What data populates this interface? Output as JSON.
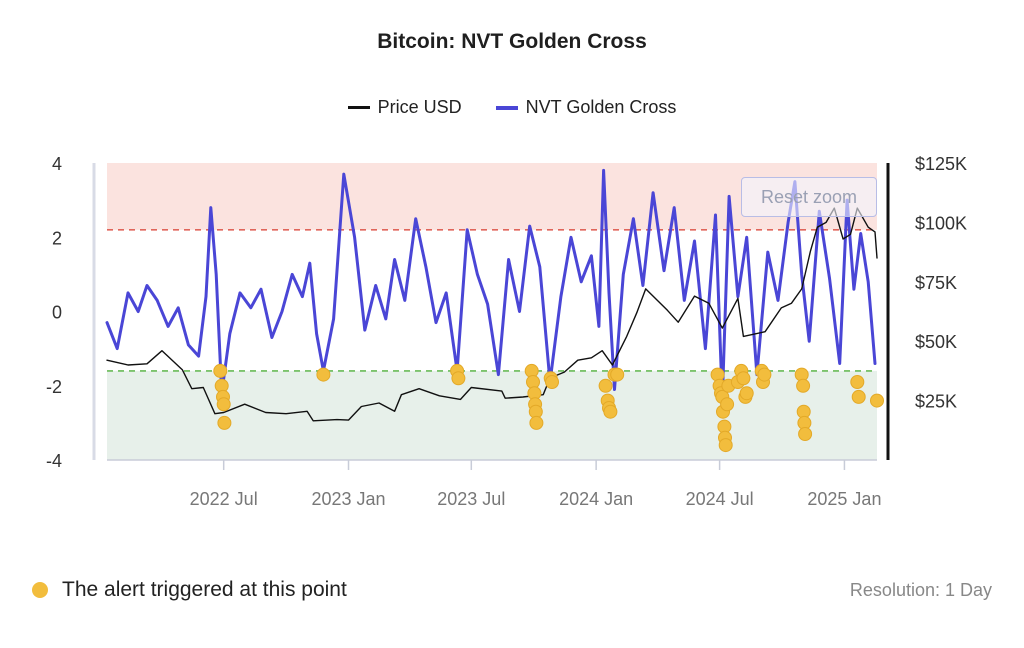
{
  "title": "Bitcoin: NVT Golden Cross",
  "legend": {
    "price_label": "Price USD",
    "nvt_label": "NVT Golden Cross"
  },
  "reset_zoom_label": "Reset zoom",
  "footer": {
    "alert_note": "The alert triggered at this point",
    "resolution": "Resolution: 1 Day"
  },
  "colors": {
    "nvt": "#4a46d6",
    "price": "#111111",
    "alert": "#f2bd3d",
    "upper_band": "#fbe3df",
    "lower_band": "#e7f0ea",
    "upper_threshold": "#e0655a",
    "lower_threshold": "#69bb58"
  },
  "chart_data": {
    "type": "line",
    "title": "Bitcoin: NVT Golden Cross",
    "x_ticks": [
      "2022 Jul",
      "2023 Jan",
      "2023 Jul",
      "2024 Jan",
      "2024 Jul",
      "2025 Jan"
    ],
    "x_tick_dates": [
      "2022-07-01",
      "2023-01-01",
      "2023-07-01",
      "2024-01-01",
      "2024-07-01",
      "2025-01-01"
    ],
    "x_range": [
      "2022-01-10",
      "2025-02-18"
    ],
    "y_left": {
      "ticks": [
        "4",
        "2",
        "0",
        "-2",
        "-4"
      ],
      "range": [
        -4,
        4
      ]
    },
    "y_right": {
      "ticks": [
        "$125K",
        "$100K",
        "$75K",
        "$50K",
        "$25K"
      ],
      "range": [
        0,
        125000
      ]
    },
    "thresholds": {
      "upper": 2.2,
      "lower": -1.6
    },
    "bands": {
      "upper": [
        2.2,
        4
      ],
      "lower": [
        -4,
        -1.6
      ]
    },
    "series": [
      {
        "name": "NVT Golden Cross",
        "axis": "left",
        "points": [
          [
            "2022-01-10",
            -0.3
          ],
          [
            "2022-01-25",
            -1.0
          ],
          [
            "2022-02-10",
            0.5
          ],
          [
            "2022-02-25",
            0.0
          ],
          [
            "2022-03-10",
            0.7
          ],
          [
            "2022-03-25",
            0.3
          ],
          [
            "2022-04-10",
            -0.4
          ],
          [
            "2022-04-25",
            0.1
          ],
          [
            "2022-05-10",
            -0.9
          ],
          [
            "2022-05-25",
            -1.2
          ],
          [
            "2022-06-05",
            0.4
          ],
          [
            "2022-06-12",
            2.8
          ],
          [
            "2022-06-20",
            1.0
          ],
          [
            "2022-06-28",
            -2.2
          ],
          [
            "2022-07-10",
            -0.6
          ],
          [
            "2022-07-25",
            0.5
          ],
          [
            "2022-08-10",
            0.1
          ],
          [
            "2022-08-25",
            0.6
          ],
          [
            "2022-09-10",
            -0.7
          ],
          [
            "2022-09-25",
            0.0
          ],
          [
            "2022-10-10",
            1.0
          ],
          [
            "2022-10-25",
            0.4
          ],
          [
            "2022-11-05",
            1.3
          ],
          [
            "2022-11-15",
            -0.6
          ],
          [
            "2022-11-25",
            -1.6
          ],
          [
            "2022-12-10",
            -0.2
          ],
          [
            "2022-12-25",
            3.7
          ],
          [
            "2023-01-10",
            2.0
          ],
          [
            "2023-01-25",
            -0.5
          ],
          [
            "2023-02-10",
            0.7
          ],
          [
            "2023-02-25",
            -0.2
          ],
          [
            "2023-03-10",
            1.4
          ],
          [
            "2023-03-25",
            0.3
          ],
          [
            "2023-04-10",
            2.5
          ],
          [
            "2023-04-25",
            1.2
          ],
          [
            "2023-05-10",
            -0.3
          ],
          [
            "2023-05-25",
            0.5
          ],
          [
            "2023-06-10",
            -1.6
          ],
          [
            "2023-06-25",
            2.2
          ],
          [
            "2023-07-10",
            1.0
          ],
          [
            "2023-07-25",
            0.2
          ],
          [
            "2023-08-10",
            -1.7
          ],
          [
            "2023-08-25",
            1.4
          ],
          [
            "2023-09-10",
            0.0
          ],
          [
            "2023-09-25",
            2.3
          ],
          [
            "2023-10-10",
            1.2
          ],
          [
            "2023-10-25",
            -1.9
          ],
          [
            "2023-11-10",
            0.4
          ],
          [
            "2023-11-25",
            2.0
          ],
          [
            "2023-12-10",
            0.8
          ],
          [
            "2023-12-25",
            1.5
          ],
          [
            "2024-01-05",
            -0.4
          ],
          [
            "2024-01-12",
            3.8
          ],
          [
            "2024-01-20",
            0.5
          ],
          [
            "2024-01-28",
            -2.1
          ],
          [
            "2024-02-10",
            1.0
          ],
          [
            "2024-02-25",
            2.5
          ],
          [
            "2024-03-10",
            0.7
          ],
          [
            "2024-03-25",
            3.2
          ],
          [
            "2024-04-10",
            1.1
          ],
          [
            "2024-04-25",
            2.8
          ],
          [
            "2024-05-10",
            0.3
          ],
          [
            "2024-05-25",
            1.9
          ],
          [
            "2024-06-10",
            -1.0
          ],
          [
            "2024-06-25",
            2.6
          ],
          [
            "2024-07-05",
            -2.4
          ],
          [
            "2024-07-15",
            3.1
          ],
          [
            "2024-07-28",
            0.4
          ],
          [
            "2024-08-10",
            2.0
          ],
          [
            "2024-08-25",
            -1.7
          ],
          [
            "2024-09-10",
            1.6
          ],
          [
            "2024-09-25",
            0.3
          ],
          [
            "2024-10-10",
            2.4
          ],
          [
            "2024-10-20",
            3.5
          ],
          [
            "2024-10-30",
            1.0
          ],
          [
            "2024-11-10",
            -0.8
          ],
          [
            "2024-11-25",
            2.7
          ],
          [
            "2024-12-10",
            0.9
          ],
          [
            "2024-12-25",
            -1.4
          ],
          [
            "2025-01-05",
            3.0
          ],
          [
            "2025-01-15",
            0.6
          ],
          [
            "2025-01-25",
            2.1
          ],
          [
            "2025-02-05",
            0.8
          ],
          [
            "2025-02-15",
            -1.4
          ]
        ]
      },
      {
        "name": "Price USD",
        "axis": "right",
        "points": [
          [
            "2022-01-10",
            42000
          ],
          [
            "2022-02-10",
            40000
          ],
          [
            "2022-03-10",
            40500
          ],
          [
            "2022-04-01",
            46000
          ],
          [
            "2022-05-01",
            38000
          ],
          [
            "2022-05-15",
            30000
          ],
          [
            "2022-06-01",
            30500
          ],
          [
            "2022-06-18",
            19500
          ],
          [
            "2022-07-01",
            20000
          ],
          [
            "2022-08-01",
            23500
          ],
          [
            "2022-09-01",
            20000
          ],
          [
            "2022-10-01",
            19500
          ],
          [
            "2022-11-01",
            20500
          ],
          [
            "2022-11-10",
            16500
          ],
          [
            "2022-12-15",
            17000
          ],
          [
            "2023-01-01",
            16800
          ],
          [
            "2023-01-20",
            22500
          ],
          [
            "2023-02-15",
            24000
          ],
          [
            "2023-03-10",
            20500
          ],
          [
            "2023-03-20",
            27500
          ],
          [
            "2023-04-15",
            30000
          ],
          [
            "2023-05-15",
            27000
          ],
          [
            "2023-06-15",
            25500
          ],
          [
            "2023-07-01",
            30500
          ],
          [
            "2023-08-15",
            29000
          ],
          [
            "2023-08-20",
            26000
          ],
          [
            "2023-09-15",
            26500
          ],
          [
            "2023-10-15",
            27500
          ],
          [
            "2023-10-25",
            34500
          ],
          [
            "2023-11-15",
            37000
          ],
          [
            "2023-12-05",
            42000
          ],
          [
            "2023-12-25",
            43000
          ],
          [
            "2024-01-10",
            46000
          ],
          [
            "2024-01-25",
            40000
          ],
          [
            "2024-02-15",
            52000
          ],
          [
            "2024-03-01",
            62000
          ],
          [
            "2024-03-14",
            72000
          ],
          [
            "2024-04-15",
            63000
          ],
          [
            "2024-05-01",
            58000
          ],
          [
            "2024-05-25",
            69000
          ],
          [
            "2024-06-15",
            66000
          ],
          [
            "2024-07-05",
            55500
          ],
          [
            "2024-07-28",
            68000
          ],
          [
            "2024-08-05",
            52000
          ],
          [
            "2024-09-06",
            54000
          ],
          [
            "2024-09-30",
            64000
          ],
          [
            "2024-10-15",
            66000
          ],
          [
            "2024-10-30",
            72000
          ],
          [
            "2024-11-12",
            88000
          ],
          [
            "2024-11-22",
            98000
          ],
          [
            "2024-12-05",
            100000
          ],
          [
            "2024-12-17",
            106000
          ],
          [
            "2024-12-30",
            93000
          ],
          [
            "2025-01-10",
            95000
          ],
          [
            "2025-01-20",
            106000
          ],
          [
            "2025-02-05",
            98000
          ],
          [
            "2025-02-15",
            96000
          ],
          [
            "2025-02-18",
            85000
          ]
        ]
      }
    ],
    "alerts": [
      [
        "2022-06-26",
        -1.6
      ],
      [
        "2022-06-28",
        -2.0
      ],
      [
        "2022-06-30",
        -2.3
      ],
      [
        "2022-07-01",
        -2.5
      ],
      [
        "2022-07-02",
        -3.0
      ],
      [
        "2022-11-25",
        -1.7
      ],
      [
        "2023-06-10",
        -1.6
      ],
      [
        "2023-06-12",
        -1.8
      ],
      [
        "2023-09-28",
        -1.6
      ],
      [
        "2023-09-30",
        -1.9
      ],
      [
        "2023-10-02",
        -2.2
      ],
      [
        "2023-10-03",
        -2.5
      ],
      [
        "2023-10-04",
        -2.7
      ],
      [
        "2023-10-05",
        -3.0
      ],
      [
        "2023-10-26",
        -1.8
      ],
      [
        "2023-10-28",
        -1.9
      ],
      [
        "2024-01-15",
        -2.0
      ],
      [
        "2024-01-18",
        -2.4
      ],
      [
        "2024-01-20",
        -2.6
      ],
      [
        "2024-01-22",
        -2.7
      ],
      [
        "2024-01-28",
        -1.7
      ],
      [
        "2024-02-01",
        -1.7
      ],
      [
        "2024-06-28",
        -1.7
      ],
      [
        "2024-07-01",
        -2.0
      ],
      [
        "2024-07-03",
        -2.2
      ],
      [
        "2024-07-05",
        -2.3
      ],
      [
        "2024-07-06",
        -2.7
      ],
      [
        "2024-07-08",
        -3.1
      ],
      [
        "2024-07-09",
        -3.4
      ],
      [
        "2024-07-10",
        -3.6
      ],
      [
        "2024-07-12",
        -2.5
      ],
      [
        "2024-07-14",
        -2.0
      ],
      [
        "2024-07-28",
        -1.9
      ],
      [
        "2024-08-02",
        -1.6
      ],
      [
        "2024-08-05",
        -1.8
      ],
      [
        "2024-08-08",
        -2.3
      ],
      [
        "2024-08-10",
        -2.2
      ],
      [
        "2024-09-01",
        -1.6
      ],
      [
        "2024-09-03",
        -1.9
      ],
      [
        "2024-09-05",
        -1.7
      ],
      [
        "2024-10-30",
        -1.7
      ],
      [
        "2024-11-01",
        -2.0
      ],
      [
        "2024-11-02",
        -2.7
      ],
      [
        "2024-11-03",
        -3.0
      ],
      [
        "2024-11-04",
        -3.3
      ],
      [
        "2025-01-20",
        -1.9
      ],
      [
        "2025-01-22",
        -2.3
      ],
      [
        "2025-02-18",
        -2.4
      ]
    ]
  }
}
